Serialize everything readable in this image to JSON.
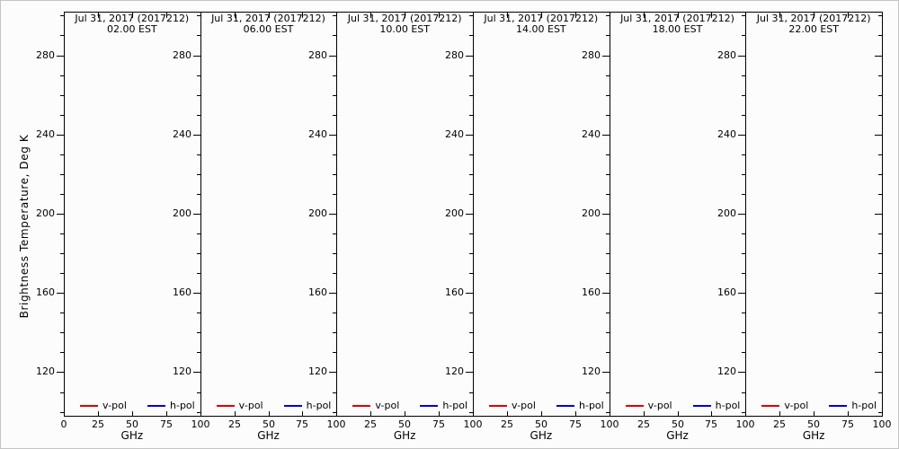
{
  "figure": {
    "ylabel": "Brightness Temperature, Deg K",
    "xlabel": "GHz",
    "legend": [
      {
        "label": "v-pol",
        "color": "#e00000"
      },
      {
        "label": "h-pol",
        "color": "#0000dd"
      }
    ],
    "colors": {
      "axis": "#000000",
      "background": "#fcfcfc",
      "vpol": "#e00000",
      "hpol": "#0000dd"
    }
  },
  "chart_data": [
    {
      "type": "line",
      "title": "Jul 31, 2017 (2017212)",
      "subtitle": "02.00 EST",
      "xlabel": "GHz",
      "ylabel": "Brightness Temperature, Deg K",
      "xlim": [
        0,
        100
      ],
      "ylim": [
        98,
        302
      ],
      "xticks": [
        0,
        25,
        50,
        75,
        100
      ],
      "yticks": [
        120,
        160,
        200,
        240,
        280
      ],
      "yminor_step": 10,
      "grid": false,
      "legend_position": "bottom-inside",
      "series": [
        {
          "name": "v-pol",
          "color": "#e00000",
          "x": [],
          "y": []
        },
        {
          "name": "h-pol",
          "color": "#0000dd",
          "x": [],
          "y": []
        }
      ]
    },
    {
      "type": "line",
      "title": "Jul 31, 2017 (2017212)",
      "subtitle": "06.00 EST",
      "xlabel": "GHz",
      "xlim": [
        0,
        100
      ],
      "ylim": [
        98,
        302
      ],
      "xticks": [
        0,
        25,
        50,
        75,
        100
      ],
      "yticks": [
        120,
        160,
        200,
        240,
        280
      ],
      "yminor_step": 10,
      "grid": false,
      "legend_position": "bottom-inside",
      "series": [
        {
          "name": "v-pol",
          "color": "#e00000",
          "x": [],
          "y": []
        },
        {
          "name": "h-pol",
          "color": "#0000dd",
          "x": [],
          "y": []
        }
      ]
    },
    {
      "type": "line",
      "title": "Jul 31, 2017 (2017212)",
      "subtitle": "10.00 EST",
      "xlabel": "GHz",
      "xlim": [
        0,
        100
      ],
      "ylim": [
        98,
        302
      ],
      "xticks": [
        0,
        25,
        50,
        75,
        100
      ],
      "yticks": [
        120,
        160,
        200,
        240,
        280
      ],
      "yminor_step": 10,
      "grid": false,
      "legend_position": "bottom-inside",
      "series": [
        {
          "name": "v-pol",
          "color": "#e00000",
          "x": [],
          "y": []
        },
        {
          "name": "h-pol",
          "color": "#0000dd",
          "x": [],
          "y": []
        }
      ]
    },
    {
      "type": "line",
      "title": "Jul 31, 2017 (2017212)",
      "subtitle": "14.00 EST",
      "xlabel": "GHz",
      "xlim": [
        0,
        100
      ],
      "ylim": [
        98,
        302
      ],
      "xticks": [
        0,
        25,
        50,
        75,
        100
      ],
      "yticks": [
        120,
        160,
        200,
        240,
        280
      ],
      "yminor_step": 10,
      "grid": false,
      "legend_position": "bottom-inside",
      "series": [
        {
          "name": "v-pol",
          "color": "#e00000",
          "x": [],
          "y": []
        },
        {
          "name": "h-pol",
          "color": "#0000dd",
          "x": [],
          "y": []
        }
      ]
    },
    {
      "type": "line",
      "title": "Jul 31, 2017 (2017212)",
      "subtitle": "18.00 EST",
      "xlabel": "GHz",
      "xlim": [
        0,
        100
      ],
      "ylim": [
        98,
        302
      ],
      "xticks": [
        0,
        25,
        50,
        75,
        100
      ],
      "yticks": [
        120,
        160,
        200,
        240,
        280
      ],
      "yminor_step": 10,
      "grid": false,
      "legend_position": "bottom-inside",
      "series": [
        {
          "name": "v-pol",
          "color": "#e00000",
          "x": [],
          "y": []
        },
        {
          "name": "h-pol",
          "color": "#0000dd",
          "x": [],
          "y": []
        }
      ]
    },
    {
      "type": "line",
      "title": "Jul 31, 2017 (2017212)",
      "subtitle": "22.00 EST",
      "xlabel": "GHz",
      "xlim": [
        0,
        100
      ],
      "ylim": [
        98,
        302
      ],
      "xticks": [
        0,
        25,
        50,
        75,
        100
      ],
      "yticks": [
        120,
        160,
        200,
        240,
        280
      ],
      "yminor_step": 10,
      "grid": false,
      "legend_position": "bottom-inside",
      "series": [
        {
          "name": "v-pol",
          "color": "#e00000",
          "x": [],
          "y": []
        },
        {
          "name": "h-pol",
          "color": "#0000dd",
          "x": [],
          "y": []
        }
      ]
    }
  ]
}
